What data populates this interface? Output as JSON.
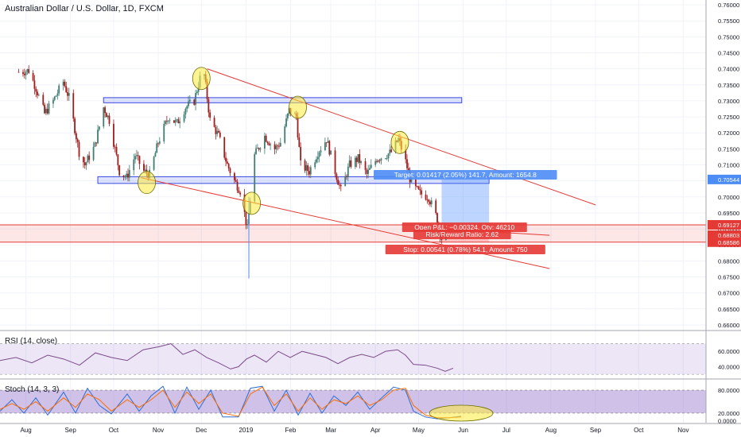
{
  "header": {
    "title": "Australian Dollar / U.S. Dollar, 1D, FXCM"
  },
  "colors": {
    "up": "#3f7e72",
    "down": "#a31c1c",
    "trendline": "#e53935",
    "zone_fill": "rgba(33,71,255,0.15)",
    "zone_border": "#3b48e0",
    "rsi_line": "#7b4c88",
    "rsi_band": "rgba(149,117,205,0.18)",
    "stoch_k": "#2d6fd6",
    "stoch_d": "#ff6d00",
    "stoch_band": "rgba(149,117,205,0.45)",
    "target_box": "rgba(68,138,255,0.35)",
    "stop_box": "rgba(255,82,82,0.25)",
    "highlight": "rgba(255,235,59,0.55)"
  },
  "annotations": {
    "target": "Target: 0.01417 (2.05%) 141.7, Amount: 1654.8",
    "open_pl": "Open P&L: −0.00324, Qty: 46210",
    "rr": "Risk/Reward Ratio: 2.62",
    "stop": "Stop: 0.00541 (0.78%) 54.1, Amount: 750"
  },
  "price_tags": [
    {
      "label": "0.70544",
      "value": 0.70544,
      "color": "#4c8cf5"
    },
    {
      "label": "0.69127",
      "value": 0.69127,
      "color": "#e53935"
    },
    {
      "label": "0.68803",
      "value": 0.68803,
      "color": "#e53935"
    },
    {
      "label": "0.68586",
      "value": 0.68586,
      "color": "#e53935"
    }
  ],
  "chart_data": [
    {
      "type": "candlestick",
      "title": "Australian Dollar / U.S. Dollar, 1D, FXCM",
      "x_ticks": [
        "Aug",
        "Sep",
        "Oct",
        "Nov",
        "Dec",
        "2019",
        "Feb",
        "Mar",
        "Apr",
        "May",
        "Jun",
        "Jul",
        "Aug",
        "Sep",
        "Oct",
        "Nov"
      ],
      "y_ticks": [
        "0.76000",
        "0.75500",
        "0.75000",
        "0.74500",
        "0.74000",
        "0.73500",
        "0.73000",
        "0.72500",
        "0.72000",
        "0.71500",
        "0.71000",
        "0.70500",
        "0.70000",
        "0.69500",
        "0.69000",
        "0.68500",
        "0.68000",
        "0.67500",
        "0.67000",
        "0.66500",
        "0.66000"
      ],
      "ylim": [
        0.6585,
        0.7615
      ],
      "close_path": [
        [
          "2018-07-27",
          0.739
        ],
        [
          "2018-08-03",
          0.7395
        ],
        [
          "2018-08-08",
          0.734
        ],
        [
          "2018-08-14",
          0.726
        ],
        [
          "2018-08-20",
          0.73
        ],
        [
          "2018-08-27",
          0.736
        ],
        [
          "2018-08-31",
          0.731
        ],
        [
          "2018-09-07",
          0.714
        ],
        [
          "2018-09-11",
          0.71
        ],
        [
          "2018-09-18",
          0.716
        ],
        [
          "2018-09-24",
          0.728
        ],
        [
          "2018-09-28",
          0.724
        ],
        [
          "2018-10-05",
          0.708
        ],
        [
          "2018-10-10",
          0.706
        ],
        [
          "2018-10-16",
          0.713
        ],
        [
          "2018-10-22",
          0.708
        ],
        [
          "2018-10-26",
          0.707
        ],
        [
          "2018-11-01",
          0.717
        ],
        [
          "2018-11-08",
          0.725
        ],
        [
          "2018-11-14",
          0.723
        ],
        [
          "2018-11-20",
          0.728
        ],
        [
          "2018-11-26",
          0.73
        ],
        [
          "2018-11-30",
          0.737
        ],
        [
          "2018-12-03",
          0.738
        ],
        [
          "2018-12-07",
          0.724
        ],
        [
          "2018-12-13",
          0.719
        ],
        [
          "2018-12-19",
          0.71
        ],
        [
          "2018-12-24",
          0.705
        ],
        [
          "2018-12-28",
          0.702
        ],
        [
          "2019-01-02",
          0.69
        ],
        [
          "2019-01-07",
          0.713
        ],
        [
          "2019-01-14",
          0.719
        ],
        [
          "2019-01-21",
          0.715
        ],
        [
          "2019-01-25",
          0.717
        ],
        [
          "2019-01-31",
          0.727
        ],
        [
          "2019-02-05",
          0.725
        ],
        [
          "2019-02-08",
          0.71
        ],
        [
          "2019-02-14",
          0.708
        ],
        [
          "2019-02-20",
          0.714
        ],
        [
          "2019-02-26",
          0.718
        ],
        [
          "2019-03-04",
          0.708
        ],
        [
          "2019-03-08",
          0.702
        ],
        [
          "2019-03-14",
          0.71
        ],
        [
          "2019-03-20",
          0.712
        ],
        [
          "2019-03-26",
          0.707
        ],
        [
          "2019-04-02",
          0.712
        ],
        [
          "2019-04-08",
          0.713
        ],
        [
          "2019-04-12",
          0.714
        ],
        [
          "2019-04-17",
          0.718
        ],
        [
          "2019-04-22",
          0.711
        ],
        [
          "2019-04-26",
          0.704
        ],
        [
          "2019-05-02",
          0.701
        ],
        [
          "2019-05-08",
          0.7
        ],
        [
          "2019-05-14",
          0.693
        ],
        [
          "2019-05-17",
          0.687
        ],
        [
          "2019-05-20",
          0.6895
        ]
      ],
      "support_resistance_zones": [
        {
          "from": "2018-09-24",
          "to": "2019-05-31",
          "low": 0.7294,
          "high": 0.731
        },
        {
          "from": "2018-09-20",
          "to": "2019-06-19",
          "low": 0.7042,
          "high": 0.7063
        }
      ],
      "trendlines": [
        {
          "from": [
            "2018-12-05",
            0.74
          ],
          "to": [
            "2019-09-01",
            0.6975
          ]
        },
        {
          "from": [
            "2018-10-20",
            0.706
          ],
          "to": [
            "2019-07-31",
            0.6776
          ]
        },
        {
          "from": [
            "2019-05-17",
            0.69
          ],
          "to": [
            "2019-07-31",
            0.688
          ]
        }
      ],
      "highlighted_pivots": [
        [
          "2018-10-24",
          0.7045
        ],
        [
          "2018-12-01",
          0.737
        ],
        [
          "2019-01-05",
          0.698
        ],
        [
          "2019-02-06",
          0.728
        ],
        [
          "2019-04-18",
          0.717
        ]
      ],
      "position": {
        "entry": 0.69127,
        "target": 0.70544,
        "stop": 0.68586,
        "current": 0.68803,
        "from": "2019-05-17",
        "to": "2019-06-19"
      },
      "horizontal_lines": [
        0.68586,
        0.69127
      ]
    },
    {
      "type": "line",
      "name": "RSI (14, close)",
      "y_ticks": [
        "60.0000",
        "40.0000"
      ],
      "band": [
        30,
        70
      ],
      "ylim": [
        25,
        85
      ],
      "series": [
        {
          "name": "RSI",
          "values": [
            [
              0,
              48
            ],
            [
              20,
              52
            ],
            [
              40,
              45
            ],
            [
              60,
              55
            ],
            [
              80,
              50
            ],
            [
              100,
              42
            ],
            [
              120,
              58
            ],
            [
              140,
              52
            ],
            [
              160,
              48
            ],
            [
              180,
              62
            ],
            [
              200,
              66
            ],
            [
              215,
              70
            ],
            [
              230,
              56
            ],
            [
              245,
              62
            ],
            [
              260,
              52
            ],
            [
              275,
              45
            ],
            [
              290,
              37
            ],
            [
              300,
              40
            ],
            [
              310,
              50
            ],
            [
              320,
              55
            ],
            [
              335,
              46
            ],
            [
              350,
              60
            ],
            [
              365,
              52
            ],
            [
              380,
              60
            ],
            [
              395,
              56
            ],
            [
              410,
              52
            ],
            [
              425,
              44
            ],
            [
              440,
              52
            ],
            [
              455,
              56
            ],
            [
              470,
              52
            ],
            [
              485,
              60
            ],
            [
              500,
              62
            ],
            [
              510,
              55
            ],
            [
              520,
              43
            ],
            [
              535,
              42
            ],
            [
              550,
              38
            ],
            [
              560,
              34
            ],
            [
              570,
              38
            ]
          ]
        }
      ]
    },
    {
      "type": "line",
      "name": "Stoch (14, 3, 3)",
      "y_ticks": [
        "80.0000",
        "20.0000",
        "0.0000"
      ],
      "band": [
        20,
        80
      ],
      "ylim": [
        -5,
        105
      ],
      "series": [
        {
          "name": "%K",
          "values": [
            [
              0,
              25
            ],
            [
              15,
              55
            ],
            [
              30,
              20
            ],
            [
              45,
              60
            ],
            [
              60,
              15
            ],
            [
              80,
              75
            ],
            [
              95,
              20
            ],
            [
              110,
              85
            ],
            [
              125,
              40
            ],
            [
              140,
              18
            ],
            [
              160,
              70
            ],
            [
              175,
              25
            ],
            [
              190,
              65
            ],
            [
              205,
              90
            ],
            [
              220,
              20
            ],
            [
              235,
              88
            ],
            [
              250,
              30
            ],
            [
              265,
              80
            ],
            [
              280,
              10
            ],
            [
              300,
              10
            ],
            [
              315,
              85
            ],
            [
              330,
              90
            ],
            [
              345,
              25
            ],
            [
              360,
              80
            ],
            [
              375,
              15
            ],
            [
              390,
              72
            ],
            [
              405,
              20
            ],
            [
              420,
              65
            ],
            [
              435,
              40
            ],
            [
              450,
              75
            ],
            [
              465,
              30
            ],
            [
              480,
              60
            ],
            [
              495,
              88
            ],
            [
              510,
              80
            ],
            [
              520,
              25
            ],
            [
              535,
              10
            ],
            [
              550,
              5
            ],
            [
              565,
              8
            ],
            [
              580,
              12
            ]
          ]
        },
        {
          "name": "%D",
          "values": [
            [
              0,
              30
            ],
            [
              15,
              45
            ],
            [
              30,
              30
            ],
            [
              45,
              50
            ],
            [
              60,
              25
            ],
            [
              80,
              60
            ],
            [
              95,
              35
            ],
            [
              110,
              70
            ],
            [
              125,
              55
            ],
            [
              140,
              25
            ],
            [
              160,
              55
            ],
            [
              175,
              35
            ],
            [
              190,
              55
            ],
            [
              205,
              80
            ],
            [
              220,
              35
            ],
            [
              235,
              75
            ],
            [
              250,
              45
            ],
            [
              265,
              70
            ],
            [
              280,
              20
            ],
            [
              300,
              12
            ],
            [
              315,
              70
            ],
            [
              330,
              88
            ],
            [
              345,
              40
            ],
            [
              360,
              70
            ],
            [
              375,
              25
            ],
            [
              390,
              60
            ],
            [
              405,
              30
            ],
            [
              420,
              55
            ],
            [
              435,
              45
            ],
            [
              450,
              65
            ],
            [
              465,
              40
            ],
            [
              480,
              55
            ],
            [
              495,
              80
            ],
            [
              510,
              85
            ],
            [
              520,
              40
            ],
            [
              535,
              15
            ],
            [
              550,
              8
            ],
            [
              565,
              8
            ],
            [
              580,
              10
            ]
          ]
        }
      ]
    }
  ],
  "panes": {
    "rsi_label": "RSI (14, close)",
    "stoch_label": "Stoch (14, 3, 3)"
  }
}
